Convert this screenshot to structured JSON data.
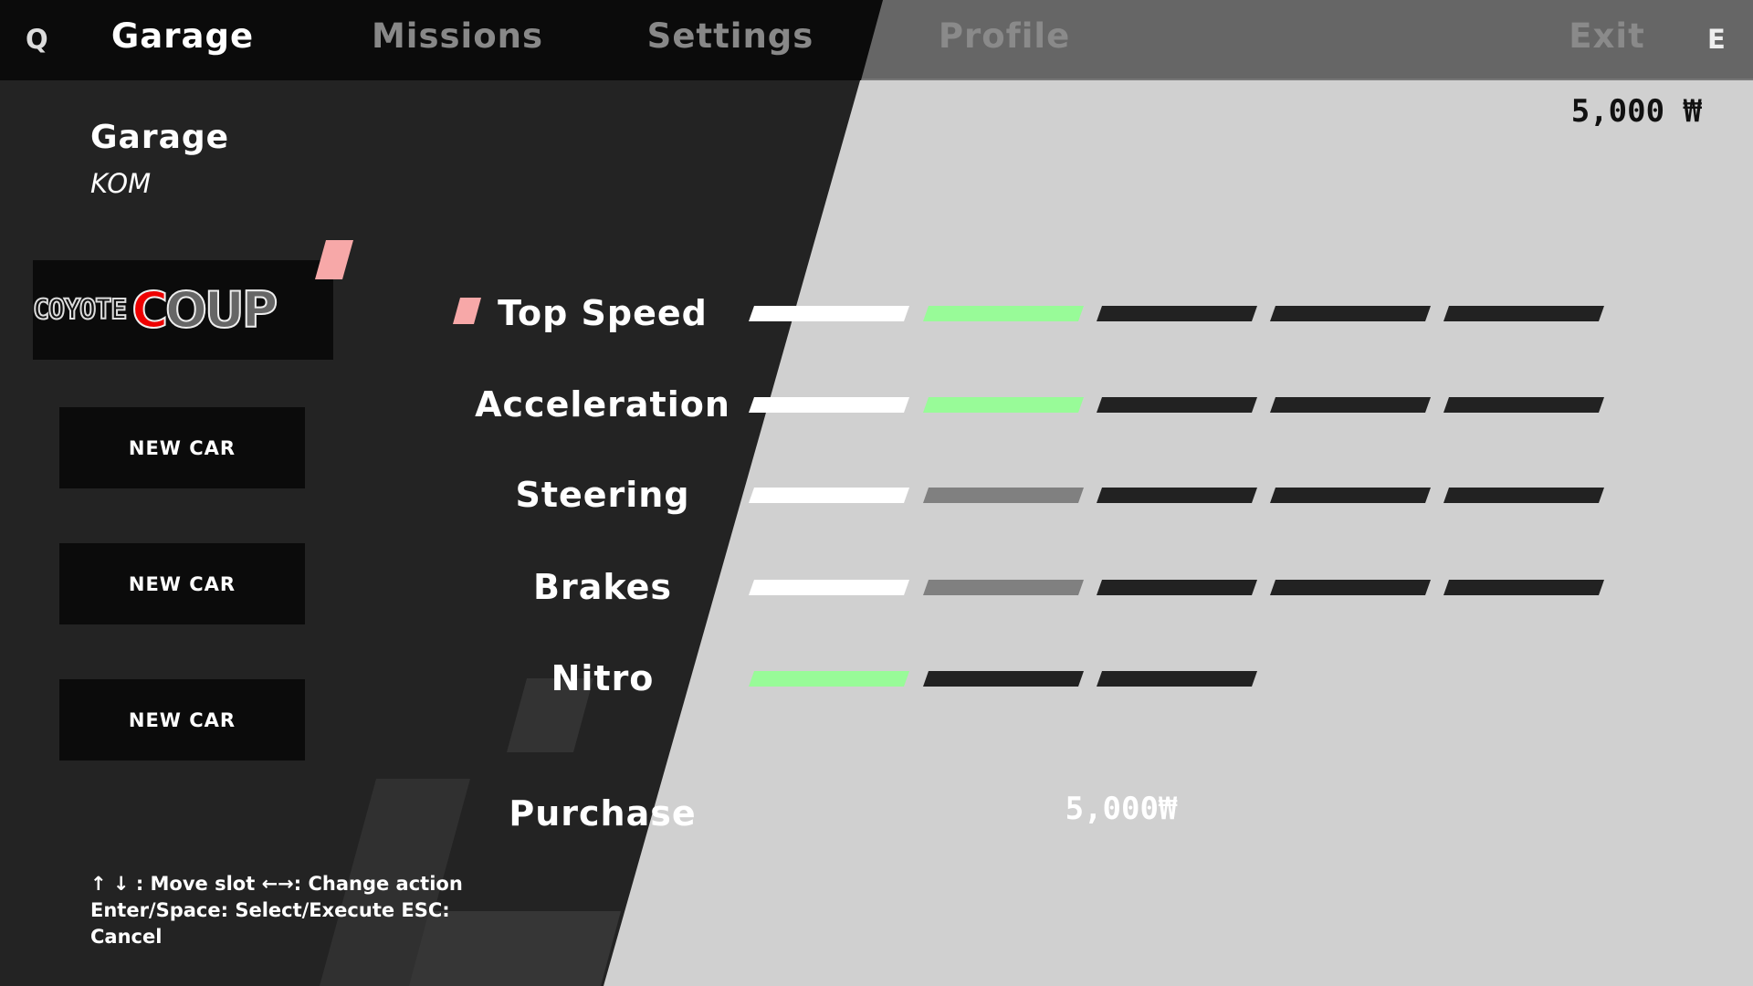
{
  "nav": {
    "left_key": "Q",
    "right_key": "E",
    "tabs": [
      {
        "label": "Garage",
        "active": true
      },
      {
        "label": "Missions"
      },
      {
        "label": "Settings"
      },
      {
        "label": "Profile"
      },
      {
        "label": "Exit"
      }
    ]
  },
  "money": "5,000 ₩",
  "header": {
    "title": "Garage",
    "subtitle": "KOM"
  },
  "car_logo": {
    "text_a": "COYOTE",
    "text_b_red": "C",
    "text_b": "OUP"
  },
  "slots": [
    {
      "label": "NEW CAR"
    },
    {
      "label": "NEW CAR"
    },
    {
      "label": "NEW CAR"
    }
  ],
  "colors": {
    "filled": "#ffffff",
    "upgrade": "#98fb98",
    "locked": "#808080",
    "empty": "#222222",
    "accent": "#f7a8a8"
  },
  "stats": [
    {
      "label": "Top Speed",
      "selected": true,
      "segments": [
        "filled",
        "upgrade",
        "empty",
        "empty",
        "empty"
      ]
    },
    {
      "label": "Acceleration",
      "segments": [
        "filled",
        "upgrade",
        "empty",
        "empty",
        "empty"
      ]
    },
    {
      "label": "Steering",
      "segments": [
        "filled",
        "locked",
        "empty",
        "empty",
        "empty"
      ]
    },
    {
      "label": "Brakes",
      "segments": [
        "filled",
        "locked",
        "empty",
        "empty",
        "empty"
      ]
    },
    {
      "label": "Nitro",
      "segments": [
        "upgrade",
        "empty",
        "empty"
      ]
    }
  ],
  "purchase": {
    "label": "Purchase",
    "price": "5,000₩"
  },
  "help": [
    "↑ ↓ : Move slot   ←→: Change action",
    "Enter/Space: Select/Execute   ESC:",
    "Cancel"
  ]
}
